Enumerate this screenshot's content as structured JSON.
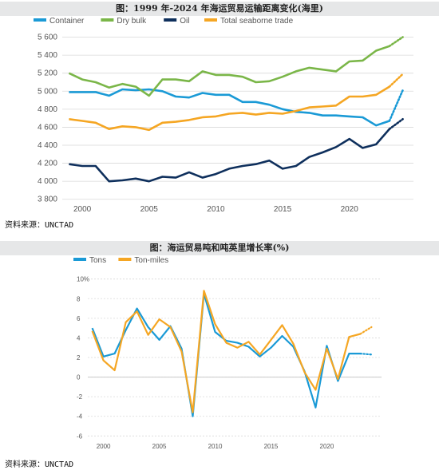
{
  "figure1": {
    "title": "图：1999 年-2024 年海运贸易运输距离变化(海里)",
    "source": "资料来源：UNCTAD"
  },
  "figure2": {
    "title": "图：海运贸易吨和吨英里增长率(%)",
    "source": "资料来源：UNCTAD"
  },
  "chart_data": [
    {
      "type": "line",
      "title": "图：1999 年-2024 年海运贸易运输距离变化(海里)",
      "xlabel": "",
      "ylabel": "",
      "x": [
        1999,
        2000,
        2001,
        2002,
        2003,
        2004,
        2005,
        2006,
        2007,
        2008,
        2009,
        2010,
        2011,
        2012,
        2013,
        2014,
        2015,
        2016,
        2017,
        2018,
        2019,
        2020,
        2021,
        2022,
        2023,
        2024
      ],
      "x_ticks": [
        2000,
        2005,
        2010,
        2015,
        2020
      ],
      "y_ticks": [
        3800,
        4000,
        4200,
        4400,
        4600,
        4800,
        5000,
        5200,
        5400,
        5600
      ],
      "y_tick_labels": [
        "3 800",
        "4 000",
        "4 200",
        "4 400",
        "4 600",
        "4 800",
        "5 000",
        "5 200",
        "5 400",
        "5 600"
      ],
      "ylim": [
        3780,
        5640
      ],
      "xlim": [
        1998.5,
        2024.8
      ],
      "projected_from": 2023,
      "grid": "horizontal",
      "legend": "top-left",
      "series": [
        {
          "name": "Container",
          "color": "#1a9ad6",
          "values": [
            4990,
            4990,
            4990,
            4950,
            5020,
            5010,
            5020,
            5000,
            4940,
            4930,
            4980,
            4960,
            4960,
            4880,
            4880,
            4850,
            4800,
            4770,
            4760,
            4730,
            4730,
            4720,
            4710,
            4620,
            4670,
            5010
          ]
        },
        {
          "name": "Dry bulk",
          "color": "#7ab648",
          "values": [
            5200,
            5130,
            5100,
            5040,
            5080,
            5050,
            4950,
            5130,
            5130,
            5110,
            5220,
            5180,
            5180,
            5160,
            5100,
            5110,
            5160,
            5220,
            5260,
            5240,
            5220,
            5330,
            5340,
            5450,
            5500,
            5600
          ]
        },
        {
          "name": "Oil",
          "color": "#0e2f5c",
          "values": [
            4190,
            4170,
            4170,
            4000,
            4010,
            4030,
            4000,
            4050,
            4040,
            4100,
            4040,
            4080,
            4140,
            4170,
            4190,
            4230,
            4140,
            4170,
            4270,
            4320,
            4380,
            4470,
            4370,
            4410,
            4580,
            4690
          ]
        },
        {
          "name": "Total seaborne trade",
          "color": "#f5a623",
          "values": [
            4690,
            4670,
            4650,
            4580,
            4610,
            4600,
            4570,
            4650,
            4660,
            4680,
            4710,
            4720,
            4750,
            4760,
            4740,
            4760,
            4750,
            4780,
            4820,
            4830,
            4840,
            4940,
            4940,
            4960,
            5050,
            5190
          ]
        }
      ]
    },
    {
      "type": "line",
      "title": "图：海运贸易吨和吨英里增长率(%)",
      "xlabel": "",
      "ylabel": "",
      "x": [
        1999,
        2000,
        2001,
        2002,
        2003,
        2004,
        2005,
        2006,
        2007,
        2008,
        2009,
        2010,
        2011,
        2012,
        2013,
        2014,
        2015,
        2016,
        2017,
        2018,
        2019,
        2020,
        2021,
        2022,
        2023,
        2024
      ],
      "x_ticks": [
        2000,
        2005,
        2010,
        2015,
        2020
      ],
      "y_ticks": [
        -6,
        -4,
        -2,
        0,
        2,
        4,
        6,
        8,
        10
      ],
      "y_tick_labels": [
        "-6",
        "-4",
        "-2",
        "0",
        "2",
        "4",
        "6",
        "8",
        "10%"
      ],
      "ylim": [
        -6.3,
        10.3
      ],
      "xlim": [
        1998.6,
        2024.9
      ],
      "projected_from": 2023,
      "grid": "horizontal",
      "legend": "top-left",
      "series": [
        {
          "name": "Tons",
          "color": "#1a9ad6",
          "values": [
            5.0,
            2.1,
            2.4,
            4.8,
            7.0,
            5.1,
            3.8,
            5.2,
            2.9,
            -4.0,
            8.5,
            4.6,
            3.7,
            3.5,
            3.1,
            2.1,
            3.0,
            4.2,
            3.1,
            0.6,
            -3.1,
            3.2,
            -0.4,
            2.4,
            2.4,
            2.3
          ]
        },
        {
          "name": "Ton-miles",
          "color": "#f5a623",
          "values": [
            4.7,
            1.7,
            0.7,
            5.6,
            6.7,
            4.3,
            5.9,
            5.1,
            2.6,
            -3.6,
            8.8,
            5.4,
            3.5,
            3.0,
            3.6,
            2.3,
            3.8,
            5.3,
            3.4,
            0.5,
            -1.3,
            2.9,
            -0.2,
            4.1,
            4.4,
            5.1
          ]
        }
      ]
    }
  ]
}
